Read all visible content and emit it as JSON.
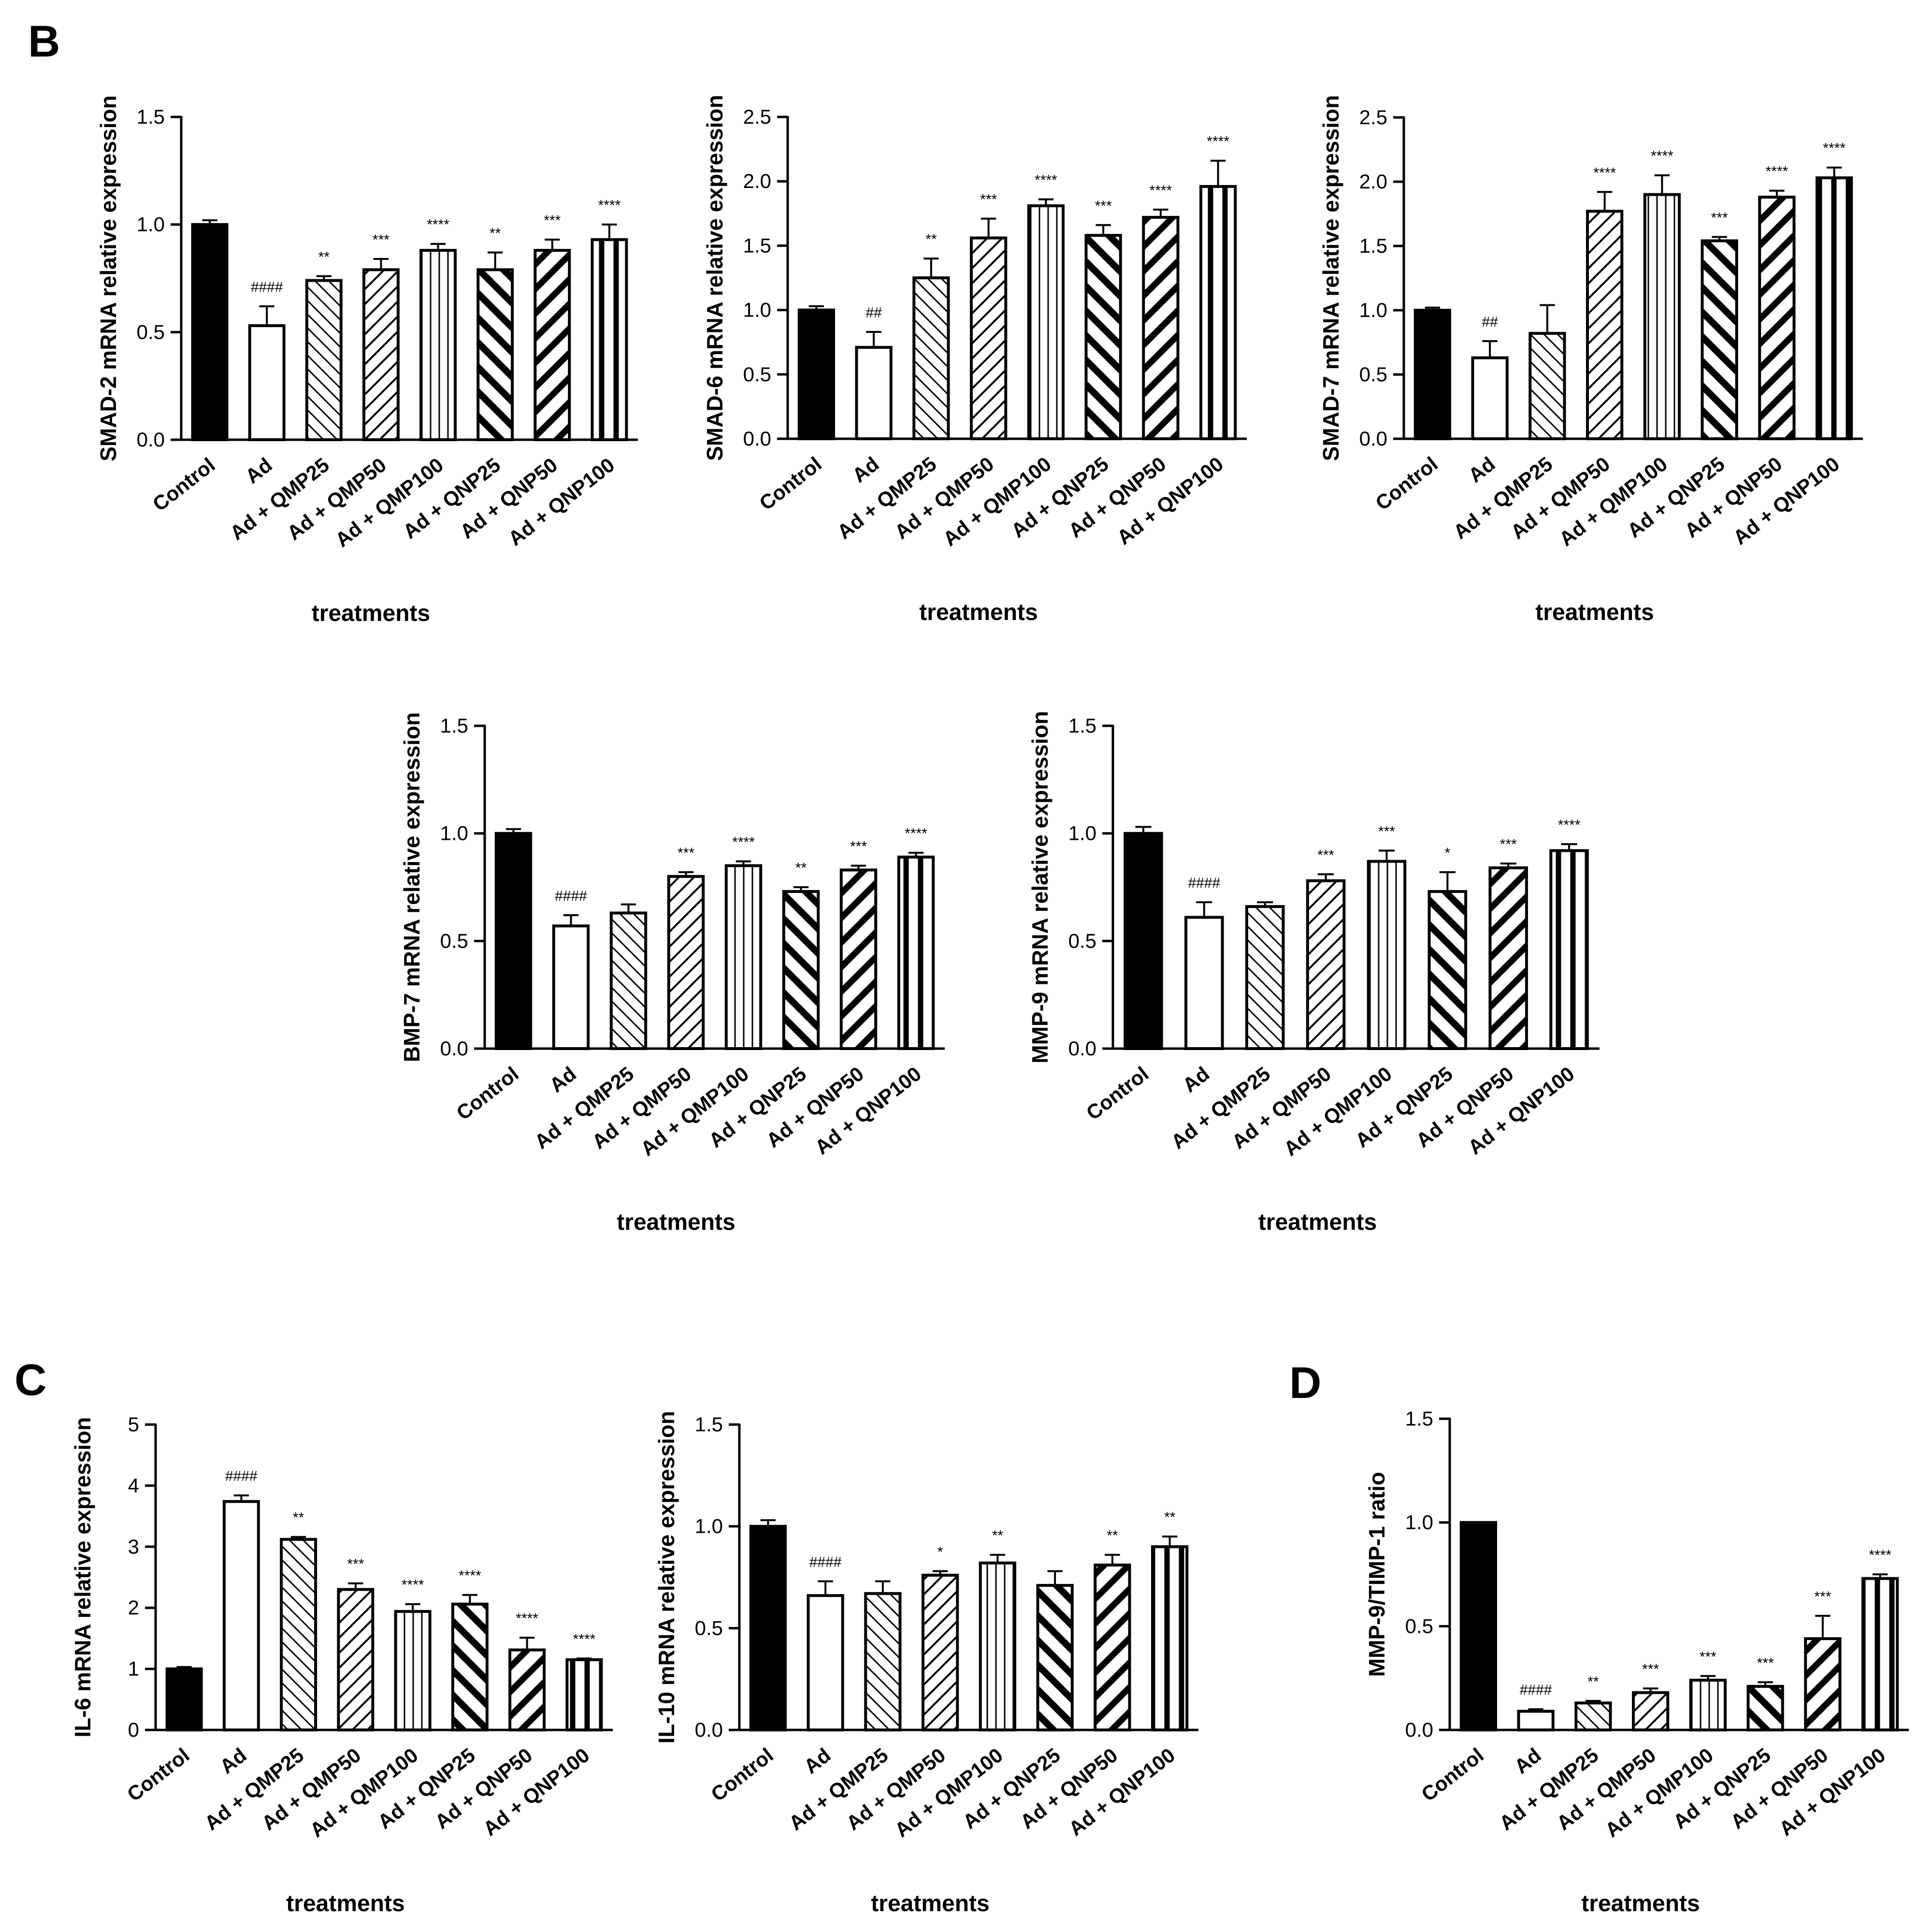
{
  "panel_labels": {
    "b": "B",
    "c": "C",
    "d": "D"
  },
  "colors": {
    "ink": "#000000",
    "background": "#ffffff"
  },
  "chart_data": [
    {
      "id": "smad2",
      "type": "bar",
      "ylabel": "SMAD-2 mRNA relative expression",
      "xlabel": "treatments",
      "categories": [
        "Control",
        "Ad",
        "Ad + QMP25",
        "Ad + QMP50",
        "Ad + QMP100",
        "Ad + QNP25",
        "Ad + QNP50",
        "Ad + QNP100"
      ],
      "values": [
        1.0,
        0.53,
        0.74,
        0.79,
        0.88,
        0.79,
        0.88,
        0.93
      ],
      "errors": [
        0.02,
        0.09,
        0.02,
        0.05,
        0.03,
        0.08,
        0.05,
        0.07
      ],
      "annotations": [
        "",
        "####",
        "**",
        "***",
        "****",
        "**",
        "***",
        "****"
      ],
      "ylim": [
        0,
        1.5
      ],
      "yticks": [
        "0.0",
        "0.5",
        "1.0",
        "1.5"
      ],
      "grid": false
    },
    {
      "id": "smad6",
      "type": "bar",
      "ylabel": "SMAD-6 mRNA relative expression",
      "xlabel": "treatments",
      "categories": [
        "Control",
        "Ad",
        "Ad + QMP25",
        "Ad + QMP50",
        "Ad + QMP100",
        "Ad + QNP25",
        "Ad + QNP50",
        "Ad + QNP100"
      ],
      "values": [
        1.0,
        0.71,
        1.25,
        1.56,
        1.81,
        1.58,
        1.72,
        1.96
      ],
      "errors": [
        0.03,
        0.12,
        0.15,
        0.15,
        0.05,
        0.08,
        0.06,
        0.2
      ],
      "annotations": [
        "",
        "##",
        "**",
        "***",
        "****",
        "***",
        "****",
        "****"
      ],
      "ylim": [
        0,
        2.5
      ],
      "yticks": [
        "0.0",
        "0.5",
        "1.0",
        "1.5",
        "2.0",
        "2.5"
      ],
      "grid": false
    },
    {
      "id": "smad7",
      "type": "bar",
      "ylabel": "SMAD-7 mRNA relative expression",
      "xlabel": "treatments",
      "categories": [
        "Control",
        "Ad",
        "Ad + QMP25",
        "Ad + QMP50",
        "Ad + QMP100",
        "Ad + QNP25",
        "Ad + QNP50",
        "Ad + QNP100"
      ],
      "values": [
        1.0,
        0.63,
        0.82,
        1.77,
        1.9,
        1.54,
        1.88,
        2.03
      ],
      "errors": [
        0.02,
        0.13,
        0.22,
        0.15,
        0.15,
        0.03,
        0.05,
        0.08
      ],
      "annotations": [
        "",
        "##",
        "",
        "****",
        "****",
        "***",
        "****",
        "****"
      ],
      "ylim": [
        0,
        2.5
      ],
      "yticks": [
        "0.0",
        "0.5",
        "1.0",
        "1.5",
        "2.0",
        "2.5"
      ],
      "grid": false
    },
    {
      "id": "bmp7",
      "type": "bar",
      "ylabel": "BMP-7 mRNA relative expression",
      "xlabel": "treatments",
      "categories": [
        "Control",
        "Ad",
        "Ad + QMP25",
        "Ad + QMP50",
        "Ad + QMP100",
        "Ad + QNP25",
        "Ad + QNP50",
        "Ad + QNP100"
      ],
      "values": [
        1.0,
        0.57,
        0.63,
        0.8,
        0.85,
        0.73,
        0.83,
        0.89
      ],
      "errors": [
        0.02,
        0.05,
        0.04,
        0.02,
        0.02,
        0.02,
        0.02,
        0.02
      ],
      "annotations": [
        "",
        "####",
        "",
        "***",
        "****",
        "**",
        "***",
        "****"
      ],
      "ylim": [
        0,
        1.5
      ],
      "yticks": [
        "0.0",
        "0.5",
        "1.0",
        "1.5"
      ],
      "grid": false
    },
    {
      "id": "mmp9",
      "type": "bar",
      "ylabel": "MMP-9 mRNA relative expression",
      "xlabel": "treatments",
      "categories": [
        "Control",
        "Ad",
        "Ad + QMP25",
        "Ad + QMP50",
        "Ad + QMP100",
        "Ad + QNP25",
        "Ad + QNP50",
        "Ad + QNP100"
      ],
      "values": [
        1.0,
        0.61,
        0.66,
        0.78,
        0.87,
        0.73,
        0.84,
        0.92
      ],
      "errors": [
        0.03,
        0.07,
        0.02,
        0.03,
        0.05,
        0.09,
        0.02,
        0.03
      ],
      "annotations": [
        "",
        "####",
        "",
        "***",
        "***",
        "*",
        "***",
        "****"
      ],
      "ylim": [
        0,
        1.5
      ],
      "yticks": [
        "0.0",
        "0.5",
        "1.0",
        "1.5"
      ],
      "grid": false
    },
    {
      "id": "il6",
      "type": "bar",
      "ylabel": "IL-6 mRNA relative expression",
      "xlabel": "treatments",
      "categories": [
        "Control",
        "Ad",
        "Ad + QMP25",
        "Ad + QMP50",
        "Ad + QMP100",
        "Ad + QNP25",
        "Ad + QNP50",
        "Ad + QNP100"
      ],
      "values": [
        1.0,
        3.74,
        3.12,
        2.3,
        1.94,
        2.06,
        1.31,
        1.15
      ],
      "errors": [
        0.03,
        0.1,
        0.04,
        0.1,
        0.12,
        0.15,
        0.2,
        0.02
      ],
      "annotations": [
        "",
        "####",
        "**",
        "***",
        "****",
        "****",
        "****",
        "****"
      ],
      "ylim": [
        0,
        5
      ],
      "yticks": [
        "0",
        "1",
        "2",
        "3",
        "4",
        "5"
      ],
      "grid": false
    },
    {
      "id": "il10",
      "type": "bar",
      "ylabel": "IL-10 mRNA relative expression",
      "xlabel": "treatments",
      "categories": [
        "Control",
        "Ad",
        "Ad + QMP25",
        "Ad + QMP50",
        "Ad + QMP100",
        "Ad + QNP25",
        "Ad + QNP50",
        "Ad + QNP100"
      ],
      "values": [
        1.0,
        0.66,
        0.67,
        0.76,
        0.82,
        0.71,
        0.81,
        0.9
      ],
      "errors": [
        0.03,
        0.07,
        0.06,
        0.02,
        0.04,
        0.07,
        0.05,
        0.05
      ],
      "annotations": [
        "",
        "####",
        "",
        "*",
        "**",
        "",
        "**",
        "**"
      ],
      "ylim": [
        0,
        1.5
      ],
      "yticks": [
        "0.0",
        "0.5",
        "1.0",
        "1.5"
      ],
      "grid": false
    },
    {
      "id": "mmp9timp1",
      "type": "bar",
      "ylabel": "MMP-9/TIMP-1 ratio",
      "xlabel": "treatments",
      "categories": [
        "Control",
        "Ad",
        "Ad + QMP25",
        "Ad + QMP50",
        "Ad + QMP100",
        "Ad + QNP25",
        "Ad + QNP50",
        "Ad + QNP100"
      ],
      "values": [
        1.0,
        0.09,
        0.13,
        0.18,
        0.24,
        0.21,
        0.44,
        0.73
      ],
      "errors": [
        0.0,
        0.01,
        0.01,
        0.02,
        0.02,
        0.02,
        0.11,
        0.02
      ],
      "annotations": [
        "",
        "####",
        "**",
        "***",
        "***",
        "***",
        "***",
        "****"
      ],
      "ylim": [
        0,
        1.5
      ],
      "yticks": [
        "0.0",
        "0.5",
        "1.0",
        "1.5"
      ],
      "grid": false
    }
  ]
}
